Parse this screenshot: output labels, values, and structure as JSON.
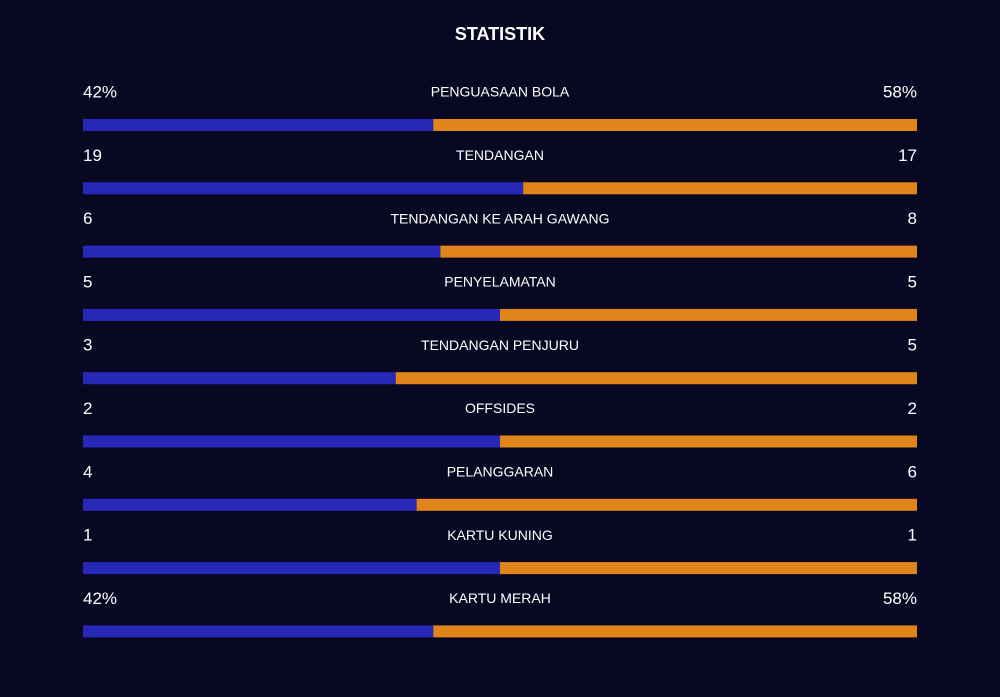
{
  "title": "STATISTIK",
  "rows": [
    {
      "label": "PENGUASAAN BOLA",
      "home": {
        "value": 42,
        "label": "42%"
      },
      "away": {
        "value": 58,
        "label": "58%"
      }
    },
    {
      "label": "TENDANGAN",
      "home": 19,
      "away": 17
    },
    {
      "label": "TENDANGAN KE ARAH GAWANG",
      "home": 6,
      "away": 8
    },
    {
      "label": "PENYELAMATAN",
      "home": 5,
      "away": 5
    },
    {
      "label": "TENDANGAN PENJURU",
      "home": 3,
      "away": 5
    },
    {
      "label": "OFFSIDES",
      "home": 2,
      "away": 2
    },
    {
      "label": "PELANGGARAN",
      "home": 4,
      "away": 6
    },
    {
      "label": "KARTU KUNING",
      "home": 1,
      "away": 1
    },
    {
      "label": "KARTU MERAH",
      "home": {
        "value": 42,
        "label": "42%"
      },
      "away": {
        "value": 58,
        "label": "58%"
      }
    }
  ]
}
